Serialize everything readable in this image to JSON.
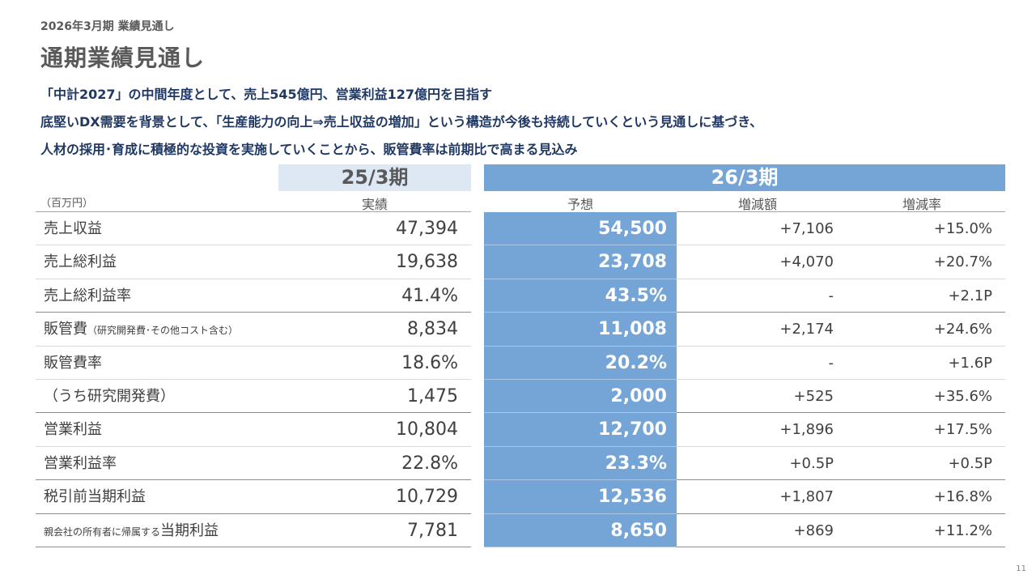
{
  "header": {
    "subtitle": "2026年3月期 業績見通し",
    "title": "通期業績見通し"
  },
  "messages": [
    "「中計2027」の中間年度として、売上545億円、営業利益127億円を目指す",
    "底堅いDX需要を背景として、「生産能力の向上⇒売上収益の増加」という構造が今後も持続していくという見通しに基づき、",
    "人材の採用･育成に積極的な投資を実施していくことから、販管費率は前期比で高まる見込み"
  ],
  "table": {
    "unit": "（百万円）",
    "prev_period": "25/3期",
    "cur_period": "26/3期",
    "col_actual": "実績",
    "col_forecast": "予想",
    "col_diff": "増減額",
    "col_rate": "増減率",
    "rows": [
      {
        "label": "売上収益",
        "note": "",
        "actual": "47,394",
        "forecast": "54,500",
        "diff": "+7,106",
        "rate": "+15.0%"
      },
      {
        "label": "売上総利益",
        "note": "",
        "actual": "19,638",
        "forecast": "23,708",
        "diff": "+4,070",
        "rate": "+20.7%"
      },
      {
        "label": "売上総利益率",
        "note": "",
        "actual": "41.4%",
        "forecast": "43.5%",
        "diff": "-",
        "rate": "+2.1P"
      },
      {
        "label": "販管費",
        "note": "（研究開発費･その他コスト含む）",
        "actual": "8,834",
        "forecast": "11,008",
        "diff": "+2,174",
        "rate": "+24.6%"
      },
      {
        "label": "販管費率",
        "note": "",
        "actual": "18.6%",
        "forecast": "20.2%",
        "diff": "-",
        "rate": "+1.6P"
      },
      {
        "label": "（うち研究開発費）",
        "note": "",
        "actual": "1,475",
        "forecast": "2,000",
        "diff": "+525",
        "rate": "+35.6%"
      },
      {
        "label": "営業利益",
        "note": "",
        "actual": "10,804",
        "forecast": "12,700",
        "diff": "+1,896",
        "rate": "+17.5%"
      },
      {
        "label": "営業利益率",
        "note": "",
        "actual": "22.8%",
        "forecast": "23.3%",
        "diff": "+0.5P",
        "rate": "+0.5P"
      },
      {
        "label": "税引前当期利益",
        "note": "",
        "actual": "10,729",
        "forecast": "12,536",
        "diff": "+1,807",
        "rate": "+16.8%"
      },
      {
        "label": "当期利益",
        "prefix": "親会社の所有者に帰属する",
        "actual": "7,781",
        "forecast": "8,650",
        "diff": "+869",
        "rate": "+11.2%"
      }
    ]
  },
  "footer": {
    "page_number": "11"
  }
}
